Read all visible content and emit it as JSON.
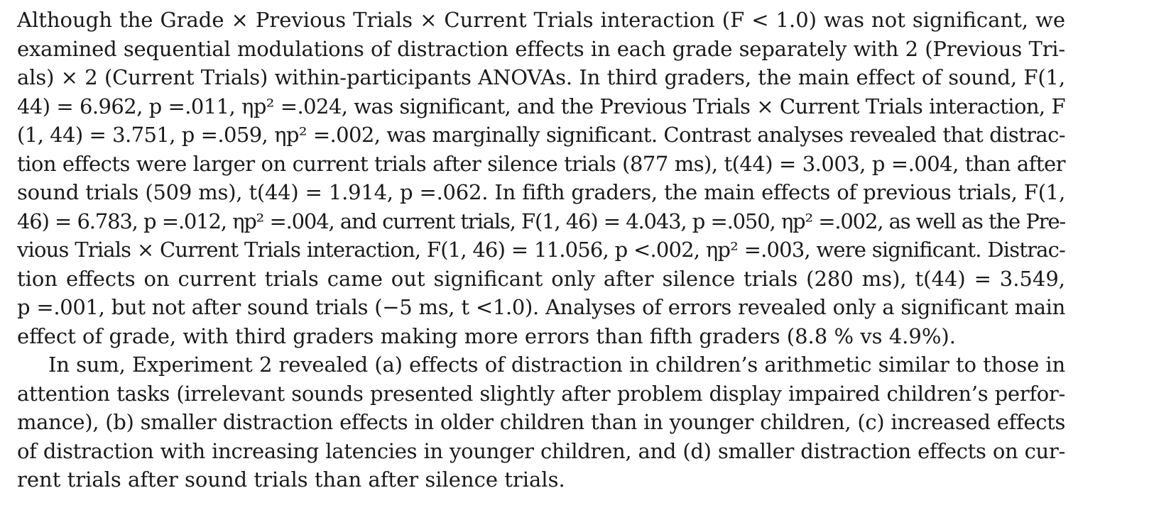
{
  "paragraphs": [
    {
      "lines": [
        "Although the Grade × Previous Trials × Current Trials interaction (F < 1.0) was not significant, we",
        "examined sequential modulations of distraction effects in each grade separately with 2 (Previous Tri-",
        "als) × 2 (Current Trials) within-participants ANOVAs. In third graders, the main effect of sound, F(1,",
        "44) = 6.962, p =.011, ηp² =.024, was significant, and the Previous Trials × Current Trials interaction, F",
        "(1, 44) = 3.751, p =.059, ηp² =.002, was marginally significant. Contrast analyses revealed that distrac-",
        "tion effects were larger on current trials after silence trials (877 ms), t(44) = 3.003, p =.004, than after",
        "sound trials (509 ms), t(44) = 1.914, p =.062. In fifth graders, the main effects of previous trials, F(1,",
        "46) = 6.783, p =.012, ηp² =.004, and current trials, F(1, 46) = 4.043, p =.050, ηp² =.002, as well as the Pre-",
        "vious Trials × Current Trials interaction, F(1, 46) = 11.056, p <.002, ηp² =.003, were significant. Distrac-",
        "tion effects on current trials came out significant only after silence trials (280 ms), t(44) = 3.549,",
        "p =.001, but not after sound trials (−5 ms, t <1.0). Analyses of errors revealed only a significant main",
        "effect of grade, with third graders making more errors than fifth graders (8.8 % vs 4.9%)."
      ]
    },
    {
      "lines": [
        "In sum, Experiment 2 revealed (a) effects of distraction in children’s arithmetic similar to those in",
        "attention tasks (irrelevant sounds presented slightly after problem display impaired children’s perfor-",
        "mance), (b) smaller distraction effects in older children than in younger children, (c) increased effects",
        "of distraction with increasing latencies in younger children, and (d) smaller distraction effects on cur-",
        "rent trials after sound trials than after silence trials."
      ]
    }
  ]
}
